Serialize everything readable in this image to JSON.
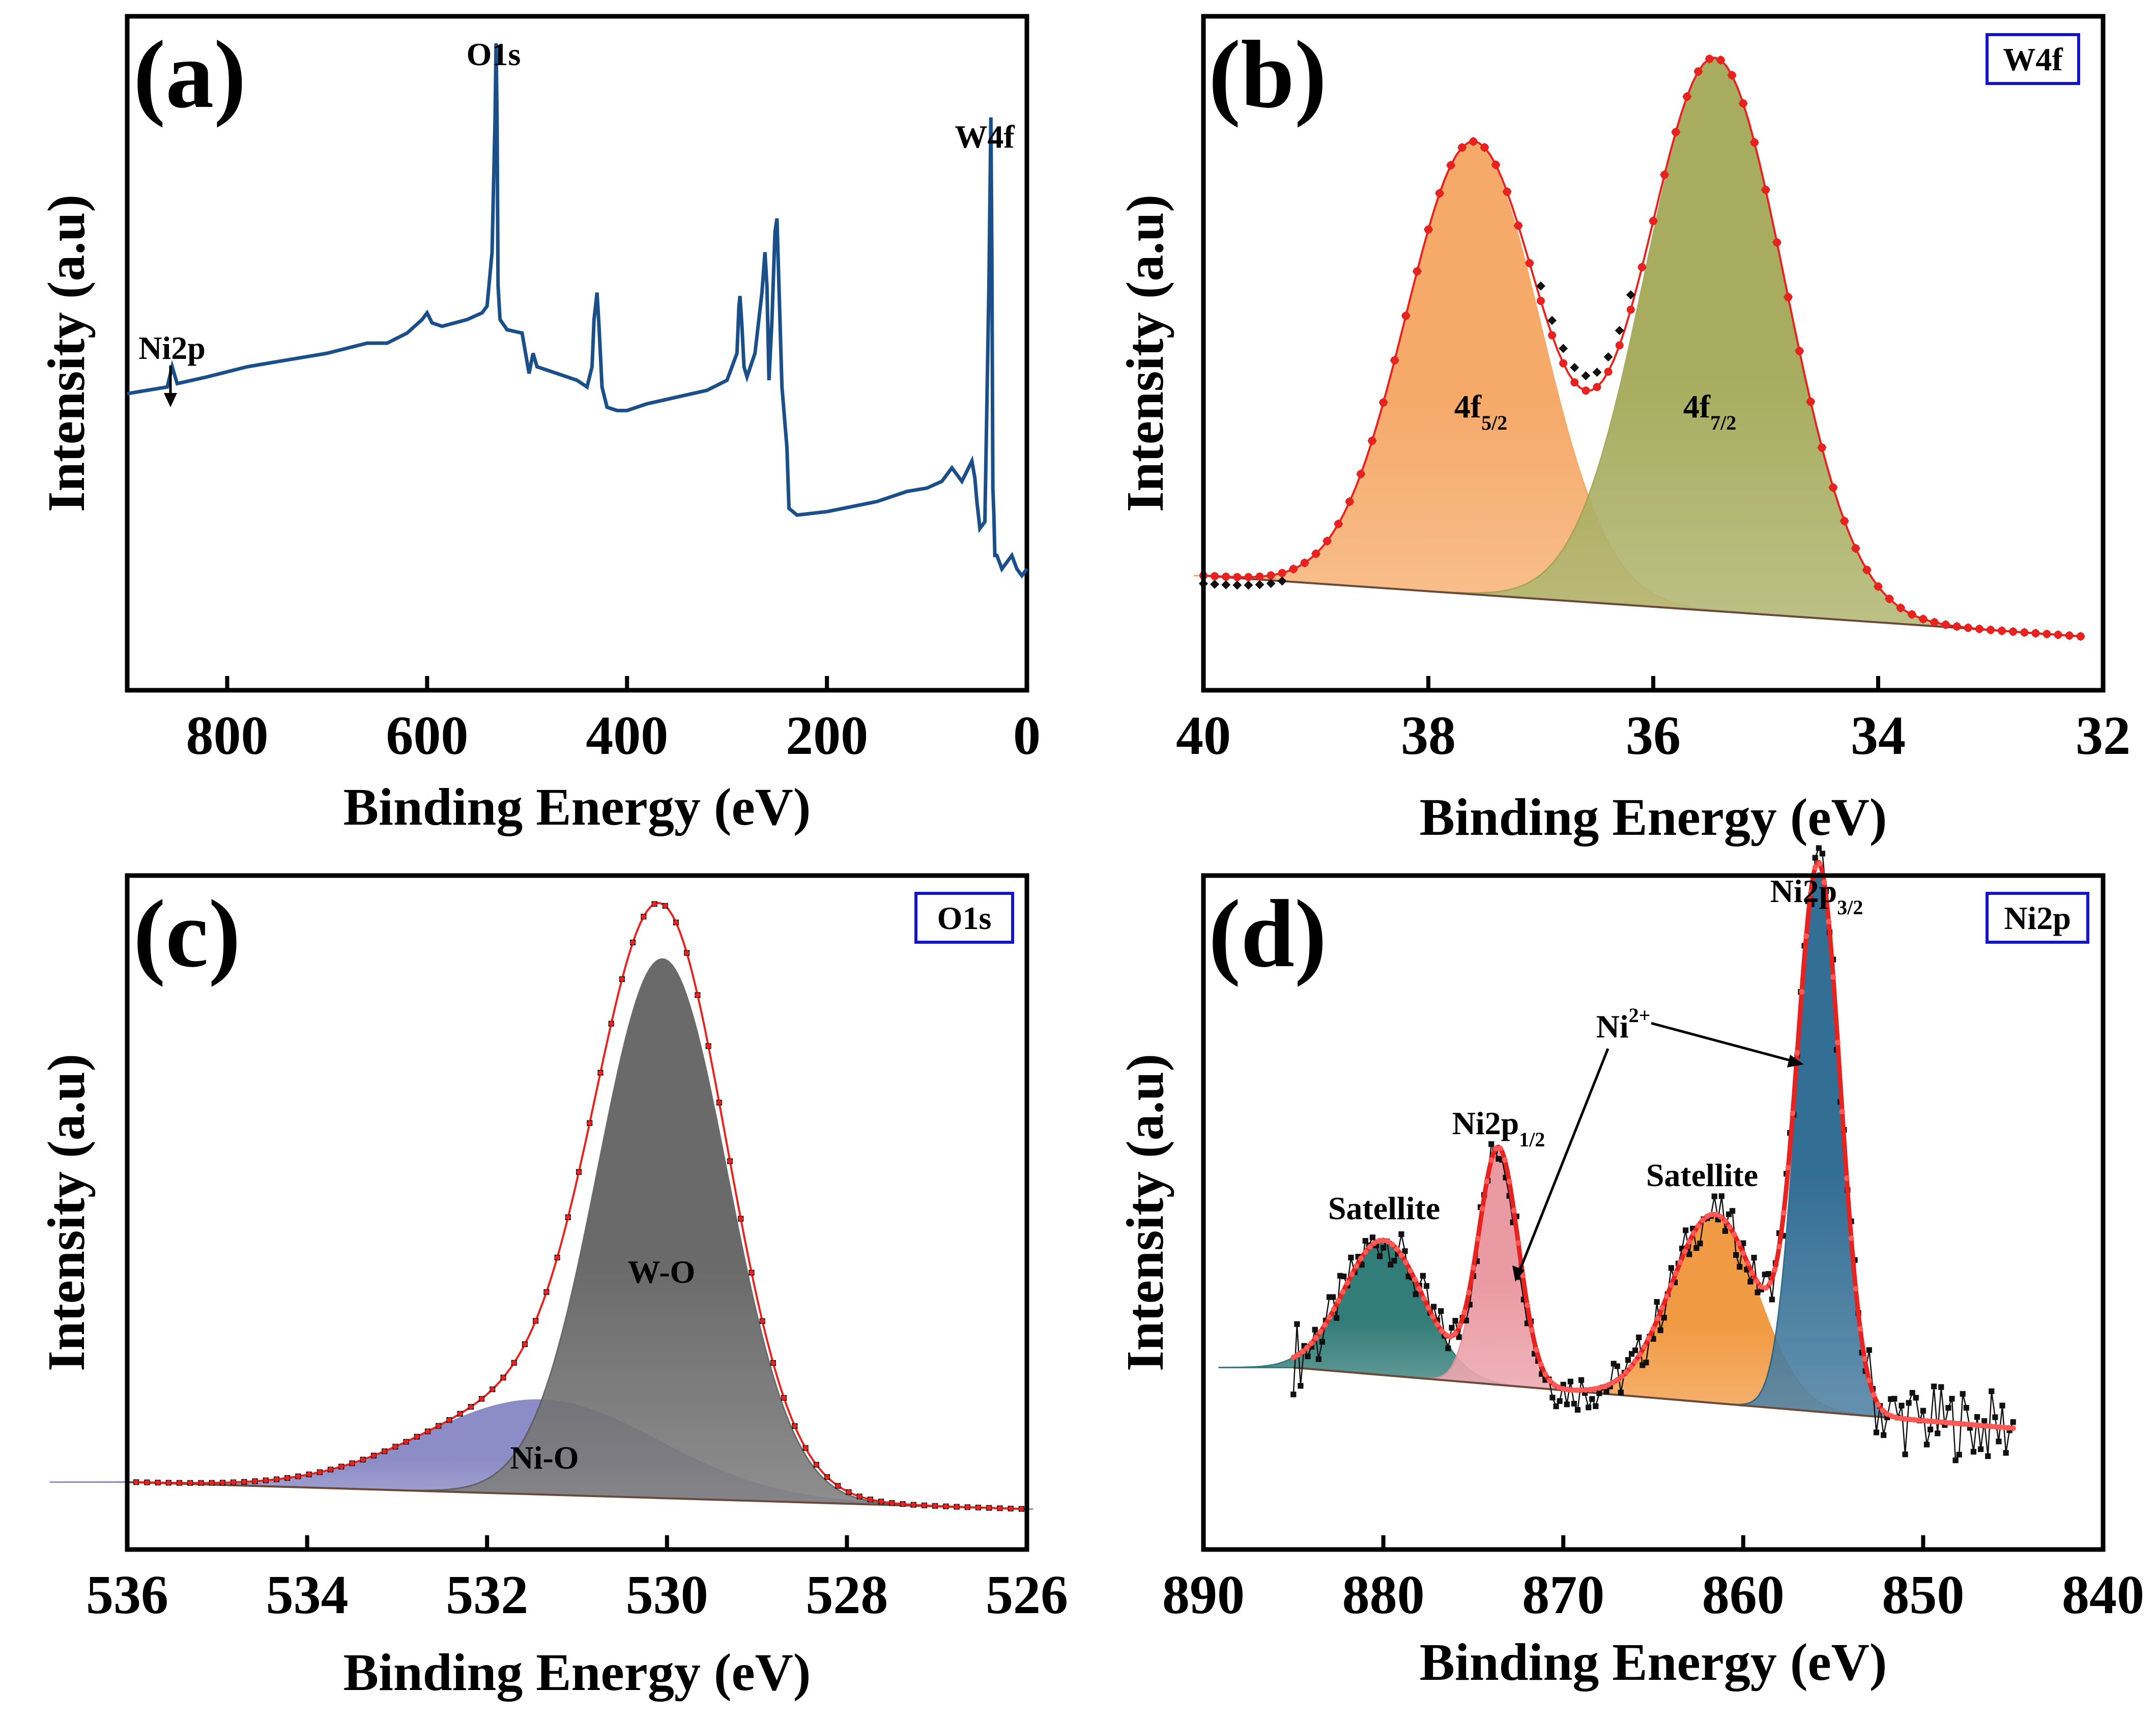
{
  "figure": {
    "panel_count": 4
  },
  "chart_data": [
    {
      "id": "a",
      "type": "line",
      "panel_label": "(a)",
      "title": "",
      "xlabel": "Binding Energy (eV)",
      "ylabel": "Intensity (a.u)",
      "xlim": [
        900,
        0
      ],
      "ylim": [
        0,
        100
      ],
      "xticks": [
        {
          "v": 800,
          "t": "800"
        },
        {
          "v": 600,
          "t": "600"
        },
        {
          "v": 400,
          "t": "400"
        },
        {
          "v": 200,
          "t": "200"
        },
        {
          "v": 0,
          "t": "0"
        }
      ],
      "yticks": [],
      "grid": false,
      "series": [
        {
          "name": "survey",
          "color": "#1b4f8a",
          "x": [
            900,
            860,
            855,
            850,
            820,
            780,
            740,
            700,
            660,
            640,
            620,
            605,
            600,
            595,
            585,
            560,
            545,
            540,
            535,
            532,
            531,
            530,
            529,
            527,
            520,
            505,
            498,
            494,
            490,
            470,
            450,
            440,
            435,
            433,
            430,
            428,
            425,
            420,
            410,
            400,
            380,
            350,
            320,
            300,
            290,
            288,
            287,
            285,
            283,
            280,
            272,
            265,
            262,
            260,
            258,
            255,
            252,
            250,
            248,
            245,
            240,
            238,
            230,
            200,
            150,
            120,
            100,
            85,
            75,
            65,
            55,
            52,
            50,
            47,
            42,
            38,
            36,
            35,
            34,
            33,
            32,
            30,
            25,
            20,
            15,
            10,
            5,
            0
          ],
          "y": [
            44,
            45,
            48,
            45.5,
            46.5,
            48,
            49,
            50,
            51.5,
            51.5,
            53,
            55,
            56,
            54.5,
            54,
            55,
            56,
            57,
            65,
            85,
            96,
            85,
            60,
            55,
            53.5,
            53,
            47,
            50,
            48,
            47,
            46,
            45,
            48,
            55,
            59,
            54,
            45,
            42,
            41.5,
            41.5,
            42.5,
            43.5,
            44.5,
            46,
            50,
            57,
            58.5,
            54,
            48,
            46.5,
            50,
            59,
            65,
            60,
            46,
            55,
            68,
            70,
            60,
            45,
            36,
            27,
            26,
            26.5,
            28,
            29.5,
            30,
            31,
            33,
            31,
            34,
            31.5,
            28,
            24,
            25,
            60,
            85,
            65,
            30,
            26,
            20,
            20,
            18,
            19,
            20,
            18,
            17,
            18
          ]
        }
      ],
      "annotations": [
        {
          "text": "O1s",
          "x": 531
        },
        {
          "text": "W4f",
          "x": 36
        },
        {
          "text": "Ni2p",
          "x": 855
        }
      ]
    },
    {
      "id": "b",
      "type": "area",
      "panel_label": "(b)",
      "tag": "W4f",
      "xlabel": "Binding Energy (eV)",
      "ylabel": "Intensity (a.u)",
      "xlim": [
        40,
        32
      ],
      "ylim": [
        0,
        100
      ],
      "xticks": [
        {
          "v": 40,
          "t": "40"
        },
        {
          "v": 38,
          "t": "38"
        },
        {
          "v": 36,
          "t": "36"
        },
        {
          "v": 34,
          "t": "34"
        },
        {
          "v": 32,
          "t": "32"
        }
      ],
      "yticks": [],
      "grid": false,
      "baseline": {
        "x": [
          40,
          32.2
        ],
        "y": [
          17,
          8
        ]
      },
      "components": [
        {
          "name": "4f",
          "sub": "5/2",
          "center": 37.6,
          "height": 67,
          "width": 0.6,
          "color": "#f5a15a",
          "label_x": 37.4,
          "label_y": 48
        },
        {
          "name": "4f",
          "sub": "7/2",
          "center": 35.45,
          "height": 82,
          "width": 0.62,
          "color": "#9ea44e",
          "label_x": 35.3,
          "label_y": 48
        }
      ],
      "series": [
        {
          "name": "envelope fit",
          "color": "#e8231f",
          "marker": "circle",
          "x_start": 40,
          "x_end": 32.2,
          "step": 0.1
        },
        {
          "name": "experimental",
          "color": "#111111",
          "marker": "diamond",
          "x_start": 40,
          "x_end": 32.2,
          "step": 0.1
        }
      ]
    },
    {
      "id": "c",
      "type": "area",
      "panel_label": "(c)",
      "tag": "O1s",
      "xlabel": "Binding Energy (eV)",
      "ylabel": "Intensity (a.u)",
      "xlim": [
        536,
        526
      ],
      "ylim": [
        0,
        100
      ],
      "xticks": [
        {
          "v": 536,
          "t": "536"
        },
        {
          "v": 534,
          "t": "534"
        },
        {
          "v": 532,
          "t": "532"
        },
        {
          "v": 530,
          "t": "530"
        },
        {
          "v": 528,
          "t": "528"
        },
        {
          "v": 526,
          "t": "526"
        }
      ],
      "yticks": [],
      "grid": false,
      "baseline": {
        "x": [
          536,
          526
        ],
        "y": [
          10,
          6
        ]
      },
      "components": [
        {
          "name": "Ni-O",
          "sub": "",
          "center": 531.4,
          "height": 14,
          "width": 1.3,
          "color": "#8080c0",
          "label_x": 531.2,
          "label_y": 8
        },
        {
          "name": "W-O",
          "sub": "",
          "center": 530.05,
          "height": 80,
          "width": 0.72,
          "color": "#5a5a5a",
          "label_x": 530.4,
          "label_y": 40
        }
      ],
      "series": [
        {
          "name": "envelope fit",
          "color": "#e8231f",
          "marker": "circle",
          "x_start": 535.9,
          "x_end": 526,
          "step": 0.12
        },
        {
          "name": "experimental",
          "color": "#111111",
          "marker": "square",
          "x_start": 535.9,
          "x_end": 526,
          "step": 0.12
        }
      ]
    },
    {
      "id": "d",
      "type": "area",
      "panel_label": "(d)",
      "tag": "Ni2p",
      "xlabel": "Binding Energy (eV)",
      "ylabel": "Intensity (a.u)",
      "xlim": [
        890,
        840
      ],
      "ylim": [
        0,
        100
      ],
      "xticks": [
        {
          "v": 890,
          "t": "890"
        },
        {
          "v": 880,
          "t": "880"
        },
        {
          "v": 870,
          "t": "870"
        },
        {
          "v": 860,
          "t": "860"
        },
        {
          "v": 850,
          "t": "850"
        },
        {
          "v": 840,
          "t": "840"
        }
      ],
      "yticks": [],
      "grid": false,
      "baseline": {
        "x": [
          885,
          845
        ],
        "y": [
          27,
          18
        ]
      },
      "components": [
        {
          "name": "Satellite",
          "center": 880,
          "height": 20,
          "width": 2.2,
          "color": "#1e6f6a"
        },
        {
          "name": "Ni2p1/2",
          "center": 873.6,
          "height": 35,
          "width": 1.1,
          "color": "#e8909a"
        },
        {
          "name": "Satellite",
          "center": 861.6,
          "height": 28,
          "width": 2.4,
          "color": "#f09030"
        },
        {
          "name": "Ni2p3/2",
          "center": 855.8,
          "height": 80,
          "width": 1.2,
          "color": "#1e5f8a"
        }
      ],
      "series": [
        {
          "name": "envelope fit",
          "color": "#e8231f",
          "marker": "circle",
          "x_start": 885,
          "x_end": 845,
          "step": 0.25
        },
        {
          "name": "experimental",
          "color": "#111111",
          "marker": "square",
          "x_start": 885,
          "x_end": 845,
          "step": 0.2
        }
      ],
      "annotations": [
        {
          "text": "Satellite",
          "x": 880
        },
        {
          "text": "Ni2p",
          "sub": "1/2",
          "x": 873.6
        },
        {
          "text": "Ni",
          "sup": "2+",
          "x": 866
        },
        {
          "text": "Satellite",
          "x": 862
        },
        {
          "text": "Ni2p",
          "sub": "3/2",
          "x": 855.5
        }
      ]
    }
  ]
}
